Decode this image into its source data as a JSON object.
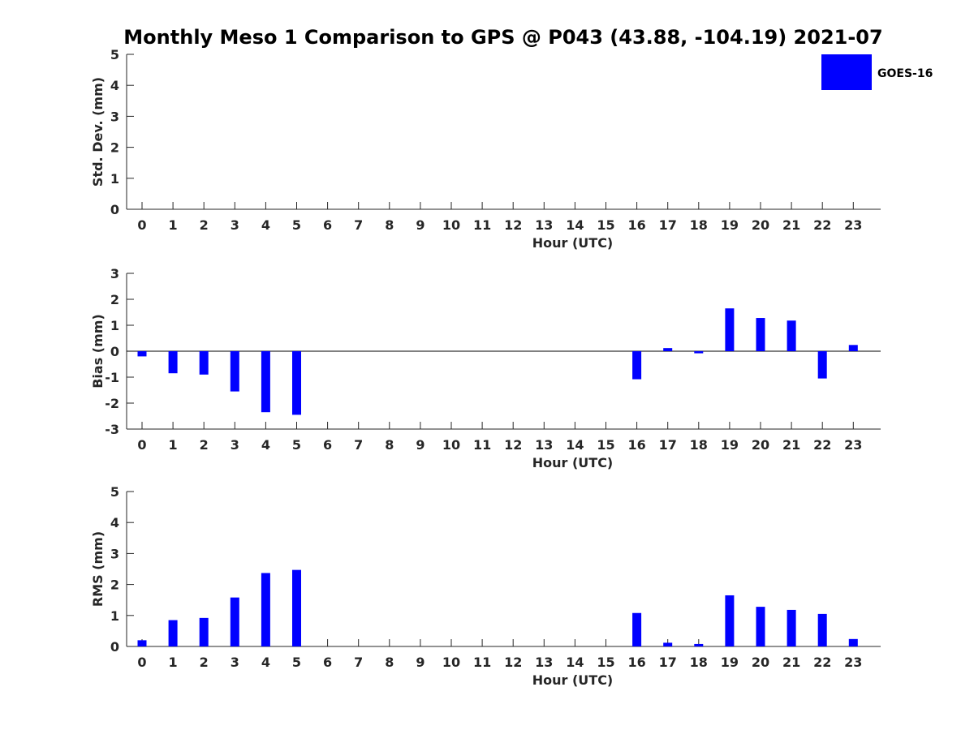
{
  "title": "Monthly Meso 1 Comparison to GPS @ P043 (43.88, -104.19) 2021-07",
  "legend": {
    "label": "GOES-16",
    "color": "#0000ff"
  },
  "chart_data": [
    {
      "type": "bar",
      "name": "std",
      "xlabel": "Hour (UTC)",
      "ylabel": "Std. Dev. (mm)",
      "ylim": [
        0,
        5
      ],
      "yticks": [
        0,
        1,
        2,
        3,
        4,
        5
      ],
      "categories": [
        "0",
        "1",
        "2",
        "3",
        "4",
        "5",
        "6",
        "7",
        "8",
        "9",
        "10",
        "11",
        "12",
        "13",
        "14",
        "15",
        "16",
        "17",
        "18",
        "19",
        "20",
        "21",
        "22",
        "23"
      ],
      "series": [
        {
          "name": "GOES-16",
          "color": "#0000ff",
          "values": [
            null,
            null,
            null,
            null,
            null,
            null,
            null,
            null,
            null,
            null,
            null,
            null,
            null,
            null,
            null,
            null,
            null,
            null,
            null,
            null,
            null,
            null,
            null,
            null
          ]
        }
      ]
    },
    {
      "type": "bar",
      "name": "bias",
      "xlabel": "Hour (UTC)",
      "ylabel": "Bias (mm)",
      "ylim": [
        -3,
        3
      ],
      "yticks": [
        -3,
        -2,
        -1,
        0,
        1,
        2,
        3
      ],
      "zero_line": true,
      "categories": [
        "0",
        "1",
        "2",
        "3",
        "4",
        "5",
        "6",
        "7",
        "8",
        "9",
        "10",
        "11",
        "12",
        "13",
        "14",
        "15",
        "16",
        "17",
        "18",
        "19",
        "20",
        "21",
        "22",
        "23"
      ],
      "series": [
        {
          "name": "GOES-16",
          "color": "#0000ff",
          "values": [
            -0.2,
            -0.85,
            -0.9,
            -1.55,
            -2.35,
            -2.45,
            null,
            null,
            null,
            null,
            null,
            null,
            null,
            null,
            null,
            null,
            -1.08,
            0.12,
            -0.08,
            1.65,
            1.28,
            1.18,
            -1.05,
            0.24
          ]
        }
      ]
    },
    {
      "type": "bar",
      "name": "rms",
      "xlabel": "Hour (UTC)",
      "ylabel": "RMS (mm)",
      "ylim": [
        0,
        5
      ],
      "yticks": [
        0,
        1,
        2,
        3,
        4,
        5
      ],
      "categories": [
        "0",
        "1",
        "2",
        "3",
        "4",
        "5",
        "6",
        "7",
        "8",
        "9",
        "10",
        "11",
        "12",
        "13",
        "14",
        "15",
        "16",
        "17",
        "18",
        "19",
        "20",
        "21",
        "22",
        "23"
      ],
      "series": [
        {
          "name": "GOES-16",
          "color": "#0000ff",
          "values": [
            0.2,
            0.85,
            0.92,
            1.58,
            2.37,
            2.47,
            null,
            null,
            null,
            null,
            null,
            null,
            null,
            null,
            null,
            null,
            1.08,
            0.12,
            0.08,
            1.65,
            1.28,
            1.18,
            1.05,
            0.24
          ]
        }
      ]
    }
  ]
}
